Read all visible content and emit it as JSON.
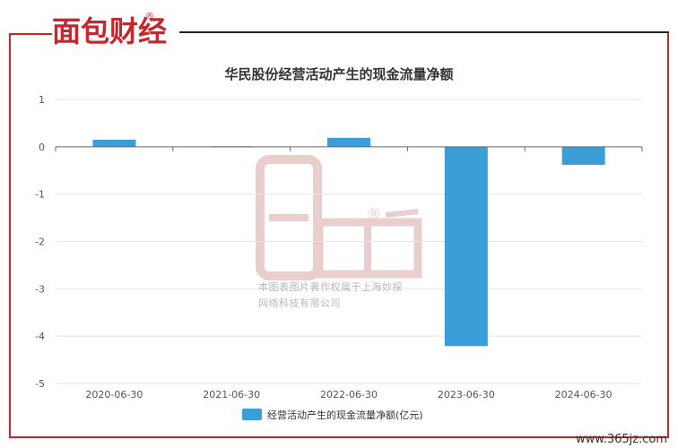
{
  "logo": {
    "text": "面包财经",
    "registered": "®"
  },
  "watermark": {
    "registered": "®",
    "line1": "本图表图片著作权属于上海妙探",
    "line2": "网络科技有限公司"
  },
  "website": "www.365jz.com",
  "colors": {
    "accent": "#c8252c",
    "bar": "#3a9fd8",
    "watermark": "#d9a7a7"
  },
  "chart_data": {
    "type": "bar",
    "title": "华民股份经营活动产生的现金流量净额",
    "categories": [
      "2020-06-30",
      "2021-06-30",
      "2022-06-30",
      "2023-06-30",
      "2024-06-30"
    ],
    "series": [
      {
        "name": "经营活动产生的现金流量净额(亿元)",
        "values": [
          0.15,
          0.01,
          0.19,
          -4.21,
          -0.38
        ]
      }
    ],
    "yticks": [
      1,
      0,
      -1,
      -2,
      -3,
      -4,
      -5
    ],
    "ylim": [
      -5,
      1
    ],
    "grid": true,
    "legend": "bottom-center"
  }
}
